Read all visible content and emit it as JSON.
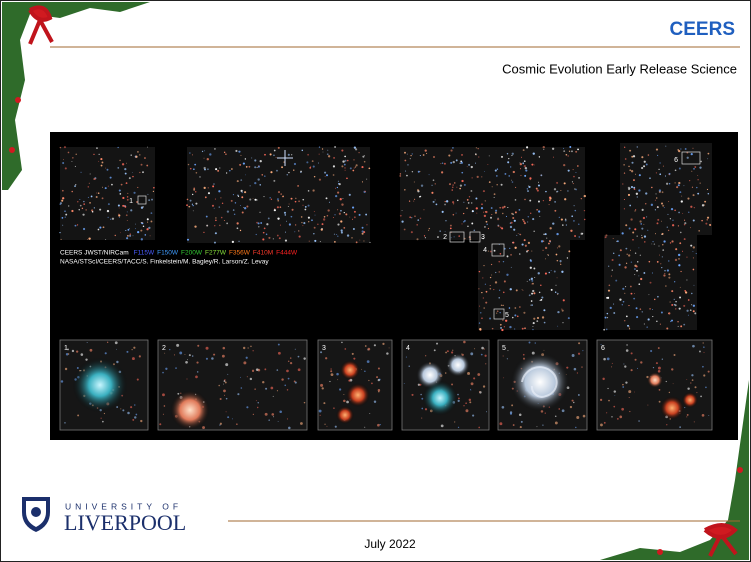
{
  "header": {
    "title": "CEERS",
    "subtitle": "Cosmic Evolution Early Release Science"
  },
  "image": {
    "instrument": "CEERS JWST/NIRCam",
    "filters": [
      {
        "label": "F115W",
        "color": "#4a5cff"
      },
      {
        "label": "F150W",
        "color": "#3f9cff"
      },
      {
        "label": "F200W",
        "color": "#33cc33"
      },
      {
        "label": "F277W",
        "color": "#88e23a"
      },
      {
        "label": "F356W",
        "color": "#ff7a1a"
      },
      {
        "label": "F410M",
        "color": "#ff3b2b"
      },
      {
        "label": "F444W",
        "color": "#ff2222"
      }
    ],
    "credit": "NASA/STScI/CEERS/TACC/S. Finkelstein/M. Bagley/R. Larson/Z. Levay",
    "field_labels": [
      "1",
      "2",
      "3",
      "4",
      "5",
      "6"
    ],
    "insets": [
      "1",
      "2",
      "3",
      "4",
      "5",
      "6"
    ]
  },
  "footer": {
    "university_top": "UNIVERSITY OF",
    "university_name": "LIVERPOOL",
    "date": "July 2022"
  }
}
